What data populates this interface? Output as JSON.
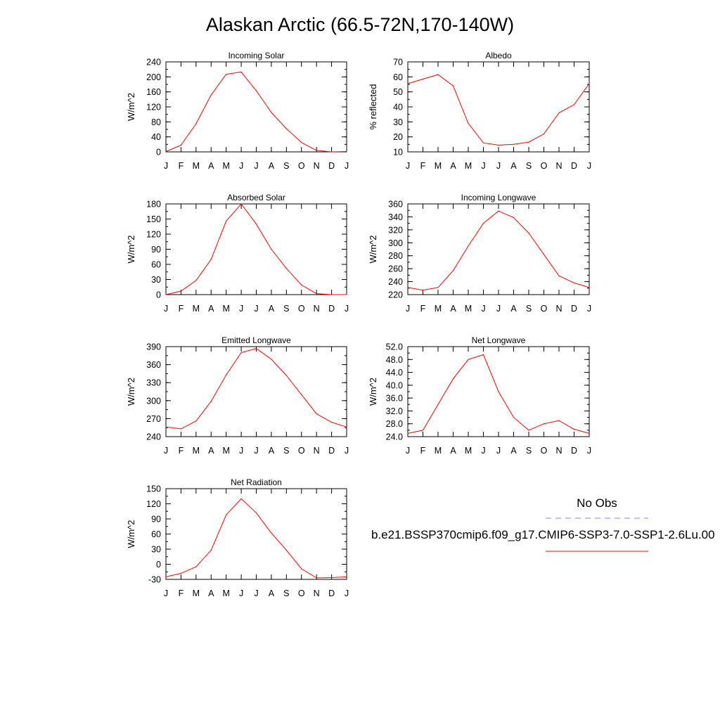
{
  "title": "Alaskan Arctic (66.5-72N,170-140W)",
  "colors": {
    "model": "#ff0000",
    "obs": "#8080ff",
    "axis": "#000000"
  },
  "legend": {
    "obs_label": "No Obs",
    "model_label": "b.e21.BSSP370cmip6.f09_g17.CMIP6-SSP3-7.0-SSP1-2.6Lu.00"
  },
  "months": [
    "J",
    "F",
    "M",
    "A",
    "M",
    "J",
    "J",
    "A",
    "S",
    "O",
    "N",
    "D",
    "J"
  ],
  "chart_data": [
    {
      "type": "line",
      "title": "Incoming Solar",
      "ylabel": "W/m^2",
      "ylim": [
        0,
        240
      ],
      "yticks": [
        0,
        40,
        80,
        120,
        160,
        200,
        240
      ],
      "ytick_labels": [
        "0",
        "40",
        "80",
        "120",
        "160",
        "200",
        "240"
      ],
      "minor_step": 20,
      "series": [
        {
          "values": [
            1,
            18,
            75,
            152,
            207,
            213,
            163,
            105,
            62,
            25,
            4,
            0,
            1
          ]
        }
      ]
    },
    {
      "type": "line",
      "title": "Albedo",
      "ylabel": "% reflected",
      "ylim": [
        10,
        70
      ],
      "yticks": [
        10,
        20,
        30,
        40,
        50,
        60,
        70
      ],
      "ytick_labels": [
        "10",
        "20",
        "30",
        "40",
        "50",
        "60",
        "70"
      ],
      "minor_step": 5,
      "series": [
        {
          "values": [
            55.5,
            58.5,
            61.5,
            54,
            29,
            16,
            14.5,
            15,
            16.5,
            22,
            36,
            41.5,
            55.5
          ]
        }
      ]
    },
    {
      "type": "line",
      "title": "Absorbed Solar",
      "ylabel": "W/m^2",
      "ylim": [
        0,
        180
      ],
      "yticks": [
        0,
        30,
        60,
        90,
        120,
        150,
        180
      ],
      "ytick_labels": [
        "0",
        "30",
        "60",
        "90",
        "120",
        "150",
        "180"
      ],
      "minor_step": 15,
      "series": [
        {
          "values": [
            0,
            7,
            28,
            70,
            146,
            180,
            140,
            90,
            52,
            19,
            2,
            0,
            0
          ]
        }
      ]
    },
    {
      "type": "line",
      "title": "Incoming Longwave",
      "ylabel": "W/m^2",
      "ylim": [
        220,
        360
      ],
      "yticks": [
        220,
        240,
        260,
        280,
        300,
        320,
        340,
        360
      ],
      "ytick_labels": [
        "220",
        "240",
        "260",
        "280",
        "300",
        "320",
        "340",
        "360"
      ],
      "minor_step": 10,
      "series": [
        {
          "values": [
            231,
            227,
            231,
            257,
            295,
            330,
            349,
            339,
            315,
            282,
            249,
            238,
            231
          ]
        }
      ]
    },
    {
      "type": "line",
      "title": "Emitted Longwave",
      "ylabel": "W/m^2",
      "ylim": [
        240,
        390
      ],
      "yticks": [
        240,
        270,
        300,
        330,
        360,
        390
      ],
      "ytick_labels": [
        "240",
        "270",
        "300",
        "330",
        "360",
        "390"
      ],
      "minor_step": 15,
      "series": [
        {
          "values": [
            256,
            253,
            266,
            299,
            343,
            380,
            387,
            369,
            342,
            310,
            278,
            264,
            256
          ]
        }
      ]
    },
    {
      "type": "line",
      "title": "Net Longwave",
      "ylabel": "W/m^2",
      "ylim": [
        24,
        52
      ],
      "yticks": [
        24,
        28,
        32,
        36,
        40,
        44,
        48,
        52
      ],
      "ytick_labels": [
        "24.0",
        "28.0",
        "32.0",
        "36.0",
        "40.0",
        "44.0",
        "48.0",
        "52.0"
      ],
      "minor_step": 2,
      "series": [
        {
          "values": [
            25,
            26,
            34,
            42,
            48,
            49.5,
            38,
            30,
            26,
            28,
            29,
            26.3,
            25
          ]
        }
      ]
    },
    {
      "type": "line",
      "title": "Net Radiation",
      "ylabel": "W/m^2",
      "ylim": [
        -30,
        150
      ],
      "yticks": [
        -30,
        0,
        30,
        60,
        90,
        120,
        150
      ],
      "ytick_labels": [
        "-30",
        "0",
        "30",
        "60",
        "90",
        "120",
        "150"
      ],
      "minor_step": 15,
      "series": [
        {
          "values": [
            -25,
            -18,
            -5,
            28,
            98,
            130,
            102,
            62,
            28,
            -9,
            -27,
            -26.5,
            -25
          ]
        }
      ]
    }
  ]
}
